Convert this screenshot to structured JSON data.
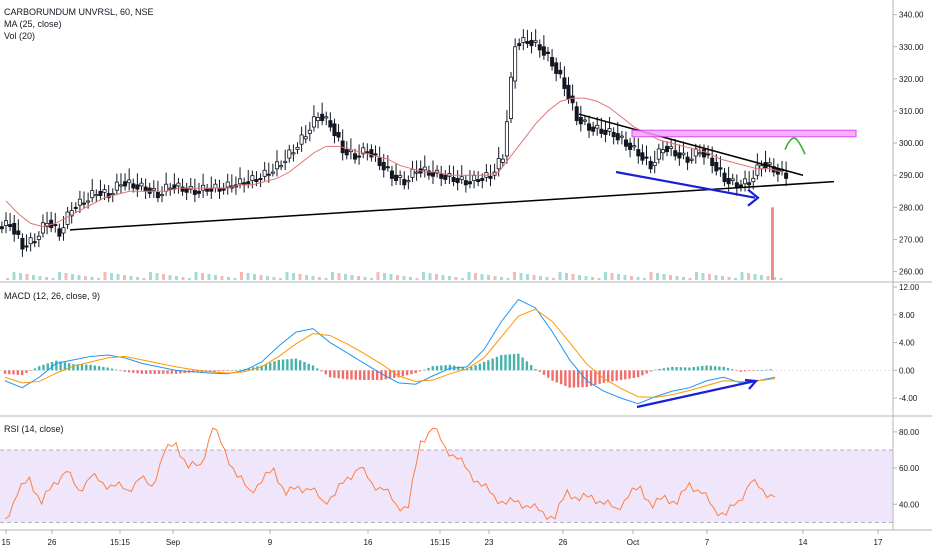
{
  "header": {
    "symbol_line": "CARBORUNDUM UNVRSL, 60, NSE",
    "ma_label": "MA (25, close)",
    "vol_label": "Vol (20)"
  },
  "macd_panel": {
    "label": "MACD (12, 26, close, 9)"
  },
  "rsi_panel": {
    "label": "RSI (14, close)"
  },
  "colors": {
    "up": "#26a69a",
    "down": "#ef5350",
    "candle": "#131722",
    "ma": "#e57373",
    "macd_line": "#2196f3",
    "signal_line": "#ff9800",
    "rsi_line": "#ff7f3f",
    "rsi_band": "#e9dcfb",
    "resistance_box": "#e040fb",
    "trendline": "#000000",
    "arrow": "#1a1fd8",
    "check_mark": "#2eb82e",
    "volume_spike": "#f28b8b"
  },
  "chart_data": [
    {
      "type": "candlestick",
      "title": "CARBORUNDUM UNVRSL, 60, NSE",
      "price_axis": [
        340.0,
        330.0,
        320.0,
        310.0,
        300.0,
        290.0,
        280.0,
        270.0,
        260.0
      ],
      "ylim": [
        258,
        343
      ],
      "x_tick_labels": [
        "15",
        "26",
        "15:15",
        "Sep",
        "9",
        "16",
        "15:15",
        "23",
        "26",
        "Oct",
        "7",
        "14",
        "17"
      ],
      "close_series": [
        275,
        268,
        270,
        276,
        272,
        280,
        282,
        285,
        284,
        288,
        287,
        286,
        284,
        287,
        286,
        285,
        286,
        286,
        287,
        288,
        289,
        291,
        294,
        298,
        303,
        309,
        306,
        298,
        296,
        298,
        294,
        290,
        288,
        292,
        291,
        290,
        289,
        288,
        289,
        290,
        296,
        331,
        332,
        330,
        325,
        318,
        308,
        305,
        304,
        303,
        300,
        297,
        293,
        299,
        297,
        295,
        298,
        294,
        289,
        287,
        288,
        294,
        292,
        290
      ],
      "ma_series": [
        282,
        278,
        275,
        274,
        275,
        277,
        279,
        281,
        283,
        284,
        285,
        285,
        285,
        285,
        286,
        286,
        286,
        286,
        286,
        287,
        287,
        288,
        289,
        291,
        294,
        297,
        299,
        299,
        298,
        297,
        296,
        295,
        293,
        292,
        291,
        291,
        290,
        290,
        290,
        290,
        291,
        296,
        301,
        306,
        310,
        313,
        314,
        314,
        313,
        311,
        308,
        305,
        303,
        301,
        300,
        299,
        298,
        297,
        295,
        294,
        293,
        292,
        292,
        291
      ],
      "trendlines": [
        {
          "name": "rising support",
          "from": [
            26,
            273
          ],
          "to": [
            14,
            288
          ]
        },
        {
          "name": "falling resistance",
          "from": [
            28,
            309
          ],
          "to": [
            10,
            290
          ]
        }
      ],
      "resistance_zone": [
        302,
        304
      ],
      "volume_spike_date": "10 Oct"
    },
    {
      "type": "line",
      "title": "MACD (12, 26, close, 9)",
      "y_ticks": [
        12.0,
        8.0,
        4.0,
        0.0,
        -4.0
      ],
      "ylim": [
        -6,
        12
      ],
      "series": [
        {
          "name": "MACD",
          "values": [
            -1.5,
            -2.5,
            -1,
            1,
            1.5,
            2.0,
            2.2,
            1.8,
            1.0,
            0.5,
            0,
            -0.2,
            -0.4,
            -0.5,
            0,
            1.2,
            3.5,
            5.5,
            6.0,
            4.0,
            2.5,
            1.0,
            -0.5,
            -1.8,
            -2.0,
            -0.8,
            0.3,
            0.5,
            3.0,
            7.0,
            10.2,
            9.0,
            5.5,
            1.5,
            -1.5,
            -3.0,
            -4.0,
            -4.8,
            -3.8,
            -3.0,
            -2.5,
            -1.5,
            -1.0,
            -1.8,
            -1.5,
            -1.0
          ]
        },
        {
          "name": "Signal",
          "values": [
            -1.0,
            -1.8,
            -1.6,
            -0.4,
            0.6,
            1.2,
            1.8,
            2.0,
            1.5,
            1.0,
            0.5,
            0.1,
            -0.2,
            -0.4,
            -0.2,
            0.5,
            2.0,
            3.8,
            5.3,
            5.0,
            3.8,
            2.4,
            0.9,
            -0.8,
            -1.6,
            -1.4,
            -0.5,
            0.2,
            1.8,
            4.8,
            7.8,
            8.8,
            7.0,
            4.0,
            0.9,
            -1.2,
            -2.6,
            -3.8,
            -3.9,
            -3.5,
            -2.9,
            -2.2,
            -1.5,
            -1.6,
            -1.5,
            -1.2
          ]
        }
      ]
    },
    {
      "type": "line",
      "title": "RSI (14, close)",
      "y_ticks": [
        80.0,
        60.0,
        40.0
      ],
      "ylim": [
        28,
        86
      ],
      "band": [
        30,
        70
      ],
      "series": [
        {
          "name": "RSI",
          "values": [
            32,
            45,
            55,
            40,
            52,
            58,
            48,
            55,
            52,
            50,
            48,
            54,
            50,
            68,
            74,
            60,
            62,
            82,
            70,
            55,
            48,
            52,
            60,
            45,
            50,
            48,
            42,
            45,
            55,
            60,
            52,
            48,
            40,
            38,
            75,
            82,
            72,
            65,
            58,
            50,
            45,
            40,
            42,
            38,
            36,
            32,
            48,
            42,
            45,
            40,
            38,
            44,
            50,
            38,
            45,
            40,
            52,
            46,
            38,
            34,
            42,
            52,
            48,
            44
          ]
        }
      ]
    }
  ]
}
